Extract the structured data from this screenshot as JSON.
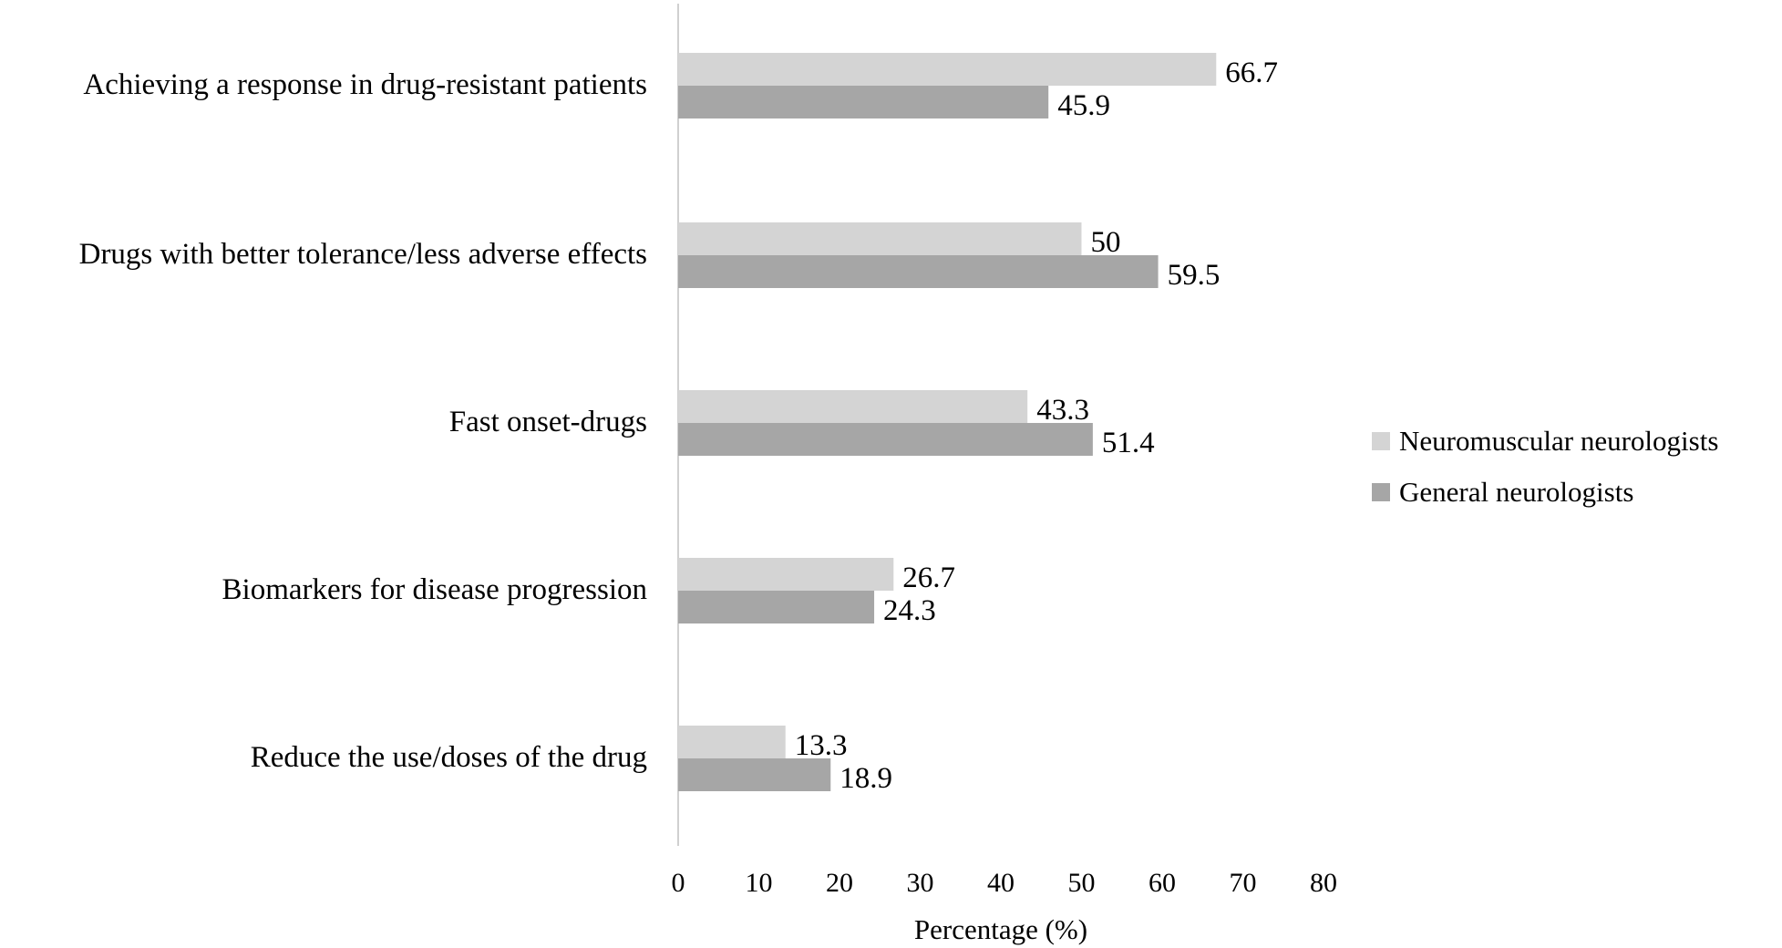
{
  "chart_data": {
    "type": "bar",
    "orientation": "horizontal",
    "categories": [
      "Achieving a response in drug-resistant patients",
      "Drugs with better tolerance/less adverse effects",
      "Fast onset-drugs",
      "Biomarkers for disease progression",
      "Reduce the use/doses of the drug"
    ],
    "series": [
      {
        "name": "Neuromuscular neurologists",
        "color": "#d4d4d4",
        "values": [
          66.7,
          50,
          43.3,
          26.7,
          13.3
        ]
      },
      {
        "name": "General neurologists",
        "color": "#a6a6a6",
        "values": [
          45.9,
          59.5,
          51.4,
          24.3,
          18.9
        ]
      }
    ],
    "value_labels": [
      [
        "66.7",
        "50",
        "43.3",
        "26.7",
        "13.3"
      ],
      [
        "45.9",
        "59.5",
        "51.4",
        "24.3",
        "18.9"
      ]
    ],
    "xlabel": "Percentage  (%)",
    "ylabel": "",
    "xlim": [
      0,
      80
    ],
    "xticks": [
      "0",
      "10",
      "20",
      "30",
      "40",
      "50",
      "60",
      "70",
      "80"
    ],
    "grid": false,
    "legend_position": "right"
  }
}
